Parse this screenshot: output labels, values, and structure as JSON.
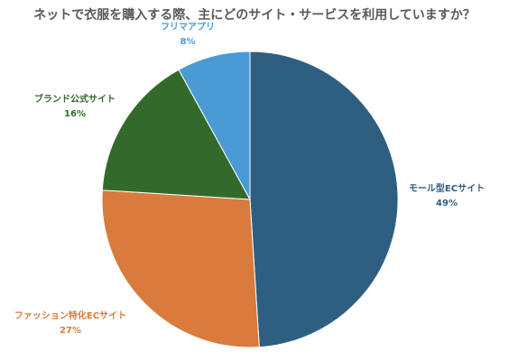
{
  "chart_data": {
    "type": "pie",
    "title": "ネットで衣服を購入する際、主にどのサイト・サービスを利用していますか？",
    "slices": [
      {
        "label": "モール型ECサイト",
        "value": 49,
        "value_label": "49%",
        "color": "#2e5f80"
      },
      {
        "label": "ファッション特化ECサイト",
        "value": 27,
        "value_label": "27%",
        "color": "#d97b3d"
      },
      {
        "label": "ブランド公式サイト",
        "value": 16,
        "value_label": "16%",
        "color": "#336a2c"
      },
      {
        "label": "フリマアプリ",
        "value": 8,
        "value_label": "8%",
        "color": "#4a9bd4"
      }
    ],
    "start_angle": "12 o'clock",
    "direction": "clockwise"
  }
}
